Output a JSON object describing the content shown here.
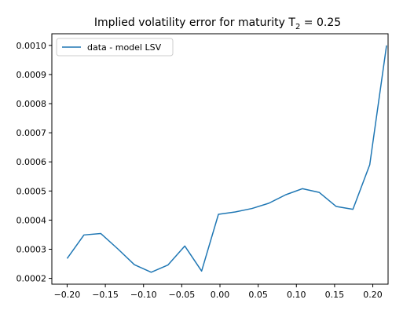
{
  "chart_data": {
    "type": "line",
    "title": "Implied volatility error for maturity T",
    "title_subscript": "2",
    "title_suffix": " = 0.25",
    "xlabel": "",
    "ylabel": "",
    "xlim": [
      -0.22,
      0.22
    ],
    "ylim": [
      0.00018,
      0.00104
    ],
    "grid": false,
    "legend_position": "top-left",
    "x_ticks": [
      -0.2,
      -0.15,
      -0.1,
      -0.05,
      0.0,
      0.05,
      0.1,
      0.15,
      0.2
    ],
    "x_tick_labels": [
      "−0.20",
      "−0.15",
      "−0.10",
      "−0.05",
      "0.00",
      "0.05",
      "0.10",
      "0.15",
      "0.20"
    ],
    "y_ticks": [
      0.0002,
      0.0003,
      0.0004,
      0.0005,
      0.0006,
      0.0007,
      0.0008,
      0.0009,
      0.001
    ],
    "y_tick_labels": [
      "0.0002",
      "0.0003",
      "0.0004",
      "0.0005",
      "0.0006",
      "0.0007",
      "0.0008",
      "0.0009",
      "0.0010"
    ],
    "series": [
      {
        "name": "data - model  LSV",
        "color": "#1f77b4",
        "x": [
          -0.2,
          -0.178,
          -0.156,
          -0.134,
          -0.112,
          -0.09,
          -0.068,
          -0.046,
          -0.024,
          -0.002,
          0.02,
          0.042,
          0.064,
          0.086,
          0.108,
          0.13,
          0.152,
          0.174,
          0.196,
          0.218
        ],
        "y": [
          0.000268,
          0.000349,
          0.000354,
          0.000302,
          0.000247,
          0.000221,
          0.000246,
          0.000311,
          0.000225,
          0.00042,
          0.000428,
          0.00044,
          0.000458,
          0.000487,
          0.000508,
          0.000495,
          0.000447,
          0.000437,
          0.00059,
          0.001
        ]
      }
    ]
  }
}
